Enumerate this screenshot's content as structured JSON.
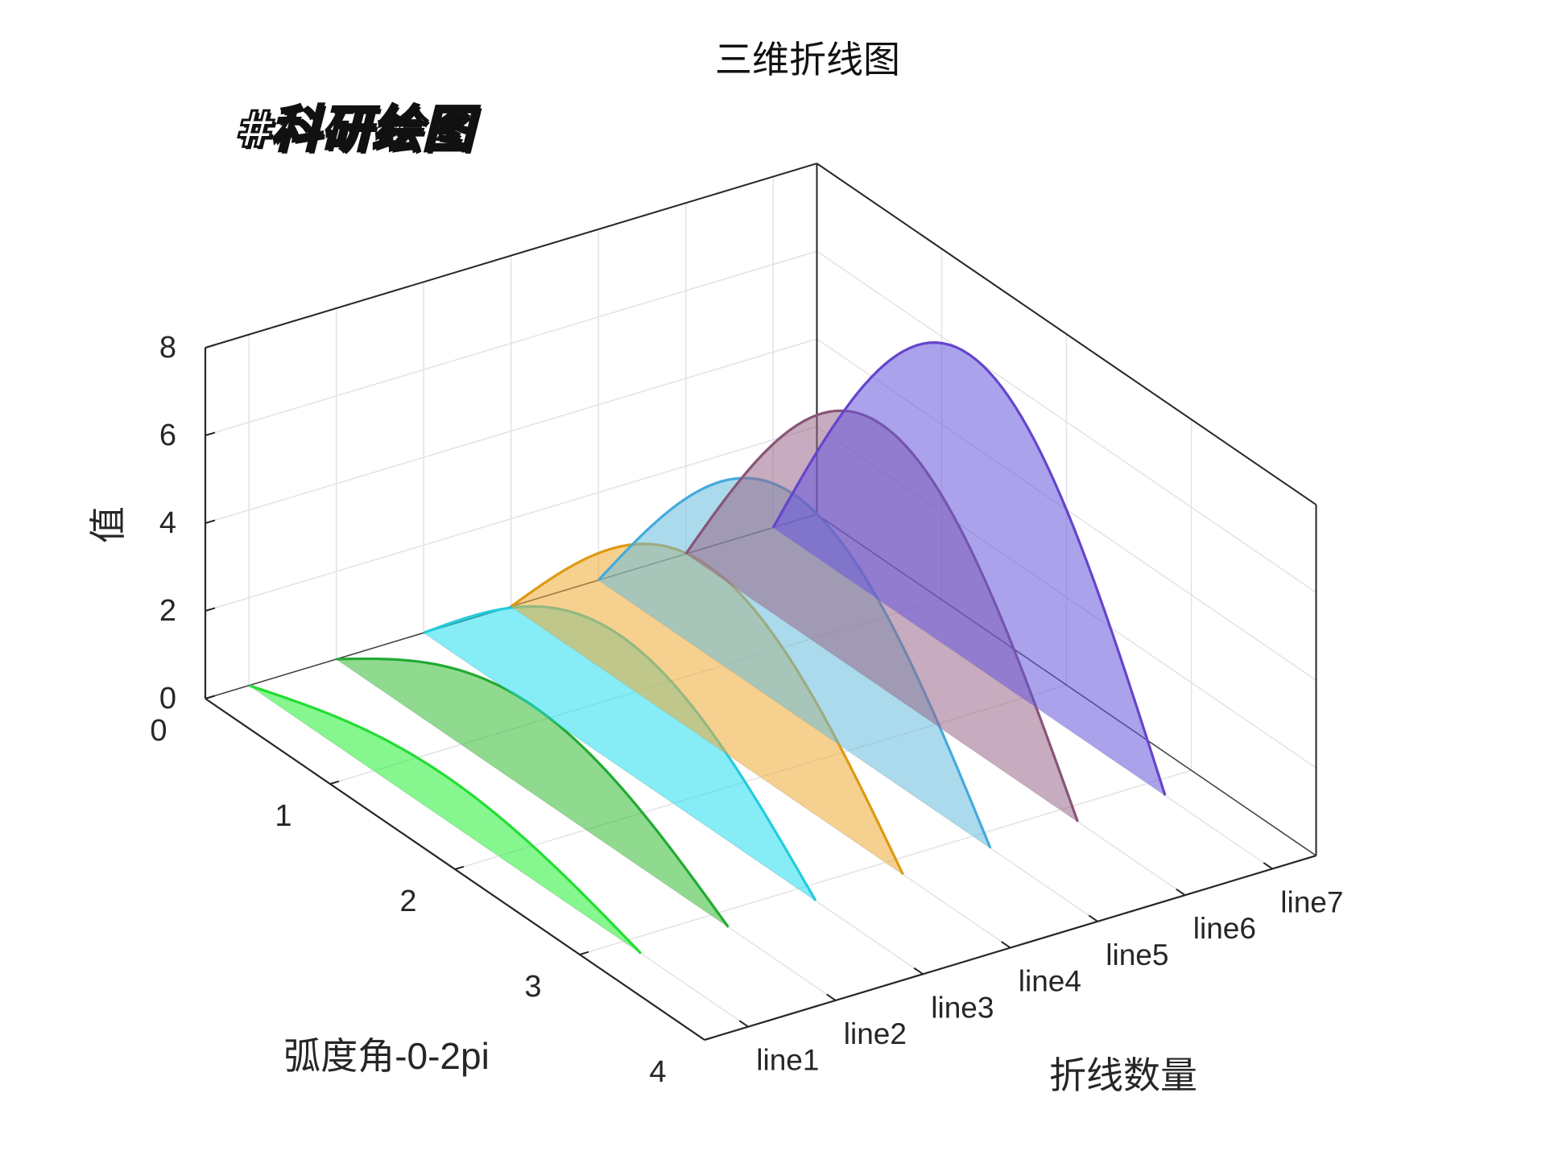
{
  "chart_data": {
    "type": "3d-line-area",
    "title": "三维折线图",
    "xlabel": "弧度角-0-2pi",
    "ylabel": "折线数量",
    "zlabel": "值",
    "xlim": [
      0,
      4
    ],
    "x_ticks": [
      "0",
      "1",
      "2",
      "3",
      "4"
    ],
    "zlim": [
      0,
      8
    ],
    "z_ticks": [
      "0",
      "2",
      "4",
      "6",
      "8"
    ],
    "categories": [
      "line1",
      "line2",
      "line3",
      "line4",
      "line5",
      "line6",
      "line7"
    ],
    "x_range_of_curves": [
      0,
      3.14
    ],
    "grid": true,
    "series": [
      {
        "name": "line1",
        "peak": 1,
        "color": "#22dd33",
        "fill": "#22ee33"
      },
      {
        "name": "line2",
        "peak": 2,
        "color": "#22aa33",
        "fill": "#33bb33"
      },
      {
        "name": "line3",
        "peak": 3,
        "color": "#22ccdd",
        "fill": "#22ddee"
      },
      {
        "name": "line4",
        "peak": 4,
        "color": "#dd9911",
        "fill": "#eeaa33"
      },
      {
        "name": "line5",
        "peak": 5,
        "color": "#44aadd",
        "fill": "#66bbdd"
      },
      {
        "name": "line6",
        "peak": 6,
        "color": "#885577",
        "fill": "#996688"
      },
      {
        "name": "line7",
        "peak": 7,
        "color": "#6644cc",
        "fill": "#6655dd"
      }
    ]
  },
  "watermark": "#科研绘图"
}
